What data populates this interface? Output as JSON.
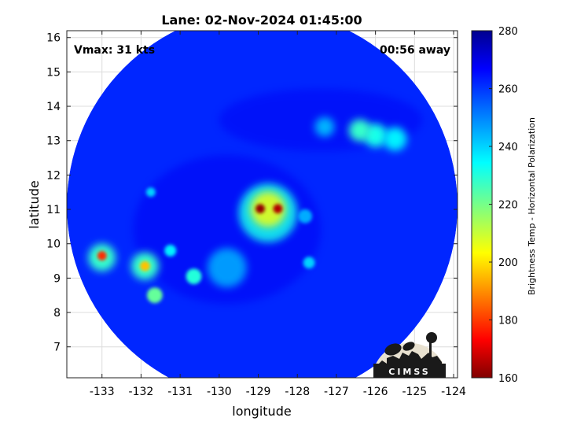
{
  "chart_data": {
    "type": "heatmap",
    "title": "Lane: 02-Nov-2024 01:45:00",
    "xlabel": "longitude",
    "ylabel": "latitude",
    "xlim": [
      -133.9,
      -123.9
    ],
    "ylim": [
      6.1,
      16.2
    ],
    "xticks": [
      -133,
      -132,
      -131,
      -130,
      -129,
      -128,
      -127,
      -126,
      -125,
      -124
    ],
    "yticks": [
      7,
      8,
      9,
      10,
      11,
      12,
      13,
      14,
      15,
      16
    ],
    "grid": true,
    "annotations": {
      "vmax": "Vmax: 31 kts",
      "time_offset": "00:56 away"
    },
    "swath": {
      "center": [
        -128.9,
        11.1
      ],
      "radius_deg": 5.0,
      "background_temp": 262
    },
    "features": [
      {
        "label": "eye-core-west",
        "lon": -128.95,
        "lat": 11.02,
        "temp": 162,
        "radius": 0.12
      },
      {
        "label": "eye-core-east",
        "lon": -128.5,
        "lat": 11.02,
        "temp": 165,
        "radius": 0.12
      },
      {
        "label": "inner-convection",
        "lon": -128.75,
        "lat": 11.0,
        "temp": 205,
        "radius": 0.45
      },
      {
        "label": "inner-ring",
        "lon": -128.75,
        "lat": 10.9,
        "temp": 232,
        "radius": 0.75
      },
      {
        "label": "west-cell-1",
        "lon": -133.0,
        "lat": 9.65,
        "temp": 178,
        "radius": 0.12
      },
      {
        "label": "west-cell-1-halo",
        "lon": -133.0,
        "lat": 9.6,
        "temp": 228,
        "radius": 0.35
      },
      {
        "label": "west-cell-2",
        "lon": -131.9,
        "lat": 9.35,
        "temp": 196,
        "radius": 0.13
      },
      {
        "label": "west-cell-2-halo",
        "lon": -131.9,
        "lat": 9.35,
        "temp": 228,
        "radius": 0.35
      },
      {
        "label": "west-cell-3",
        "lon": -131.65,
        "lat": 8.5,
        "temp": 222,
        "radius": 0.2
      },
      {
        "label": "west-cell-4",
        "lon": -130.65,
        "lat": 9.05,
        "temp": 230,
        "radius": 0.2
      },
      {
        "label": "west-cell-5",
        "lon": -131.25,
        "lat": 9.8,
        "temp": 236,
        "radius": 0.15
      },
      {
        "label": "west-cell-6",
        "lon": -131.75,
        "lat": 11.5,
        "temp": 240,
        "radius": 0.12
      },
      {
        "label": "band-ne-1",
        "lon": -126.4,
        "lat": 13.3,
        "temp": 228,
        "radius": 0.28
      },
      {
        "label": "band-ne-2",
        "lon": -126.0,
        "lat": 13.15,
        "temp": 232,
        "radius": 0.3
      },
      {
        "label": "band-ne-3",
        "lon": -125.5,
        "lat": 13.05,
        "temp": 236,
        "radius": 0.3
      },
      {
        "label": "band-ne-4",
        "lon": -127.3,
        "lat": 13.4,
        "temp": 244,
        "radius": 0.25
      },
      {
        "label": "south-cell",
        "lon": -127.7,
        "lat": 9.45,
        "temp": 240,
        "radius": 0.15
      },
      {
        "label": "east-cell",
        "lon": -127.8,
        "lat": 10.8,
        "temp": 245,
        "radius": 0.18
      },
      {
        "label": "sw-arc",
        "lon": -129.8,
        "lat": 9.3,
        "temp": 244,
        "radius": 0.5
      }
    ],
    "colorbar": {
      "label": "Brightness Temp - Horizontal Polarization",
      "min": 160,
      "max": 280,
      "ticks": [
        160,
        180,
        200,
        220,
        240,
        260,
        280
      ],
      "colormap": "jet"
    }
  },
  "logo": {
    "text": "CIMSS"
  }
}
